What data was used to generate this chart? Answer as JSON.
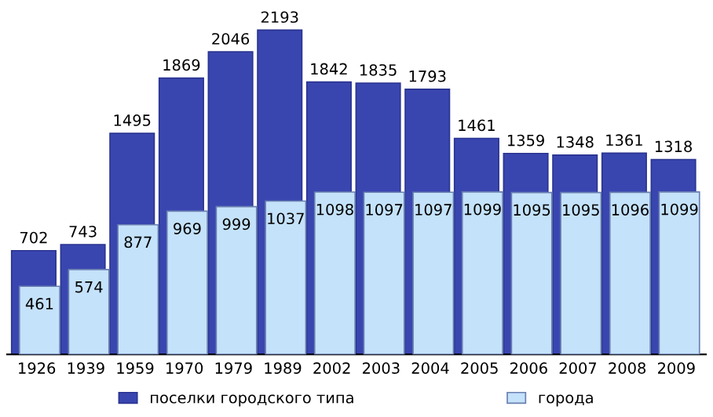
{
  "chart_data": {
    "type": "bar",
    "categories": [
      "1926",
      "1939",
      "1959",
      "1970",
      "1979",
      "1989",
      "2002",
      "2003",
      "2004",
      "2005",
      "2006",
      "2007",
      "2008",
      "2009"
    ],
    "series": [
      {
        "name": "поселки городского типа",
        "color": "#3a46b0",
        "values": [
          702,
          743,
          1495,
          1869,
          2046,
          2193,
          1842,
          1835,
          1793,
          1461,
          1359,
          1348,
          1361,
          1318
        ]
      },
      {
        "name": "города",
        "color": "#c4e2fa",
        "values": [
          461,
          574,
          877,
          969,
          999,
          1037,
          1098,
          1097,
          1097,
          1099,
          1095,
          1095,
          1096,
          1099
        ]
      }
    ],
    "data_labels": true,
    "legend": "bottom",
    "grid": false
  }
}
